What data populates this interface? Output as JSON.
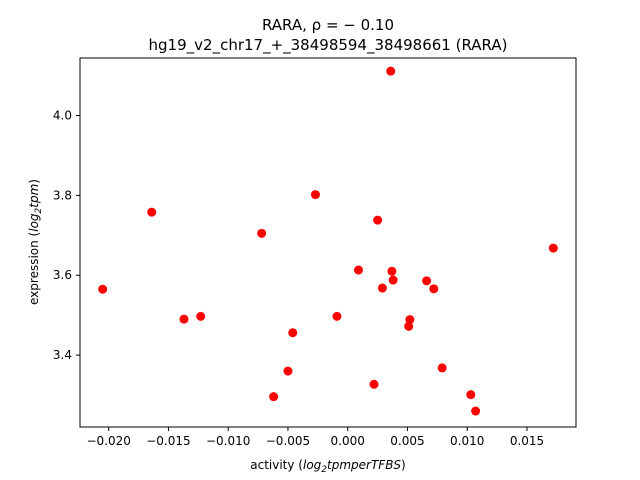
{
  "chart_data": {
    "type": "scatter",
    "title_line1": "RARA, ρ = − 0.10",
    "title_line2": "hg19_v2_chr17_+_38498594_38498661 (RARA)",
    "xlabel_prefix": "activity (",
    "xlabel_math": "log",
    "xlabel_sub": "2",
    "xlabel_math_rest": "tpmperTFBS",
    "xlabel_suffix": ")",
    "ylabel_prefix": "expression (",
    "ylabel_math": "log",
    "ylabel_sub": "2",
    "ylabel_math_rest": "tpm",
    "ylabel_suffix": ")",
    "xlim": [
      -0.0224,
      0.0191
    ],
    "ylim": [
      3.22,
      4.144
    ],
    "x_ticks": [
      -0.02,
      -0.015,
      -0.01,
      -0.005,
      0.0,
      0.005,
      0.01,
      0.015
    ],
    "x_tick_labels": [
      "−0.020",
      "−0.015",
      "−0.010",
      "−0.005",
      "0.000",
      "0.005",
      "0.010",
      "0.015"
    ],
    "y_ticks": [
      3.4,
      3.6,
      3.8,
      4.0
    ],
    "y_tick_labels": [
      "3.4",
      "3.6",
      "3.8",
      "4.0"
    ],
    "grid": false,
    "marker_color": "#ff0000",
    "points": [
      {
        "x": -0.0205,
        "y": 3.565
      },
      {
        "x": -0.0164,
        "y": 3.758
      },
      {
        "x": -0.0137,
        "y": 3.49
      },
      {
        "x": -0.0123,
        "y": 3.497
      },
      {
        "x": -0.0072,
        "y": 3.705
      },
      {
        "x": -0.0062,
        "y": 3.296
      },
      {
        "x": -0.005,
        "y": 3.36
      },
      {
        "x": -0.0046,
        "y": 3.456
      },
      {
        "x": -0.0027,
        "y": 3.802
      },
      {
        "x": -0.0009,
        "y": 3.497
      },
      {
        "x": 0.0009,
        "y": 3.613
      },
      {
        "x": 0.0022,
        "y": 3.327
      },
      {
        "x": 0.0025,
        "y": 3.738
      },
      {
        "x": 0.0029,
        "y": 3.568
      },
      {
        "x": 0.0036,
        "y": 4.111
      },
      {
        "x": 0.0037,
        "y": 3.61
      },
      {
        "x": 0.0038,
        "y": 3.588
      },
      {
        "x": 0.0051,
        "y": 3.472
      },
      {
        "x": 0.0052,
        "y": 3.489
      },
      {
        "x": 0.0066,
        "y": 3.586
      },
      {
        "x": 0.0072,
        "y": 3.566
      },
      {
        "x": 0.0079,
        "y": 3.368
      },
      {
        "x": 0.0103,
        "y": 3.301
      },
      {
        "x": 0.0107,
        "y": 3.26
      },
      {
        "x": 0.0172,
        "y": 3.668
      }
    ]
  }
}
